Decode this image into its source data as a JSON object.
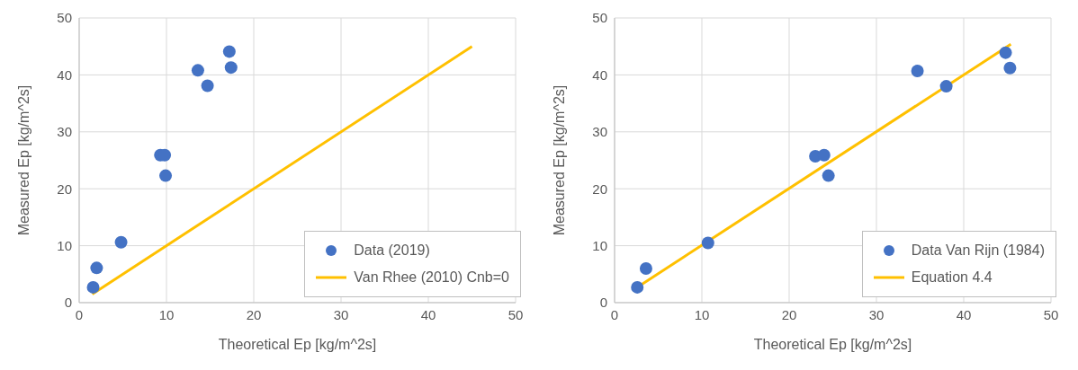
{
  "chart_data": [
    {
      "type": "scatter",
      "xlabel": "Theoretical Ep [kg/m^2s]",
      "ylabel": "Measured Ep [kg/m^2s]",
      "xlim": [
        0,
        50
      ],
      "xticks": [
        0,
        10,
        20,
        30,
        40,
        50
      ],
      "ylim": [
        0,
        50
      ],
      "yticks": [
        0,
        10,
        20,
        30,
        40,
        50
      ],
      "grid": true,
      "legend": "bottom right",
      "series": [
        {
          "name": "Data (2019)",
          "marker": "circle",
          "color": "#4472c4",
          "x": [
            1.6,
            2.0,
            4.8,
            9.3,
            9.8,
            9.9,
            13.6,
            14.7,
            17.2,
            17.4
          ],
          "values": [
            2.7,
            6.1,
            10.6,
            25.9,
            25.9,
            22.3,
            40.8,
            38.1,
            44.1,
            41.3
          ]
        },
        {
          "name": "Van Rhee (2010) Cnb=0",
          "type": "line",
          "marker": "none",
          "line_style": "solid",
          "color": "#ffc000",
          "x": [
            1.5,
            45
          ],
          "values": [
            1.5,
            45
          ]
        }
      ]
    },
    {
      "type": "scatter",
      "xlabel": "Theoretical Ep [kg/m^2s]",
      "ylabel": "Measured Ep [kg/m^2s]",
      "xlim": [
        0,
        50
      ],
      "xticks": [
        0,
        10,
        20,
        30,
        40,
        50
      ],
      "ylim": [
        0,
        50
      ],
      "yticks": [
        0,
        10,
        20,
        30,
        40,
        50
      ],
      "grid": true,
      "legend": "bottom right",
      "series": [
        {
          "name": "Data Van Rijn (1984)",
          "marker": "circle",
          "color": "#4472c4",
          "x": [
            2.6,
            3.6,
            10.7,
            23.0,
            24.0,
            24.5,
            34.7,
            38.0,
            44.8,
            45.3
          ],
          "values": [
            2.7,
            6.0,
            10.5,
            25.7,
            25.9,
            22.3,
            40.7,
            38.0,
            43.9,
            41.2
          ]
        },
        {
          "name": "Equation 4.4",
          "type": "line",
          "marker": "none",
          "line_style": "solid",
          "color": "#ffc000",
          "x": [
            2.9,
            45.4
          ],
          "values": [
            3.0,
            45.4
          ]
        }
      ]
    }
  ]
}
